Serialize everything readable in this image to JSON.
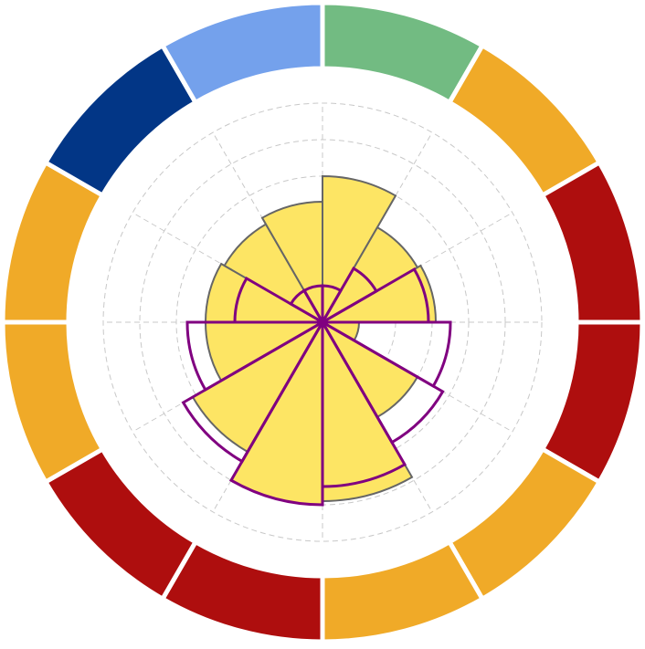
{
  "chart_data": {
    "type": "polar-bar",
    "title": "",
    "sectors": 12,
    "rlim": [
      0,
      6
    ],
    "grid": true,
    "ring_colors": [
      "#72bb82",
      "#f0aa28",
      "#ae0e0e",
      "#ae0e0e",
      "#f0aa28",
      "#f0aa28",
      "#ae0e0e",
      "#ae0e0e",
      "#f0aa28",
      "#f0aa28",
      "#023686",
      "#74a1ec"
    ],
    "series": [
      {
        "style": "filled",
        "color": "#fde564",
        "edge_color": "#666666",
        "values": [
          4.0,
          3.0,
          3.1,
          1.0,
          3.0,
          4.9,
          5.0,
          4.1,
          3.2,
          3.2,
          3.1,
          3.3
        ]
      },
      {
        "style": "outline",
        "color": "#800080",
        "values": [
          1.0,
          1.7,
          2.9,
          3.5,
          3.8,
          4.5,
          5.0,
          4.4,
          3.7,
          2.4,
          1.0,
          1.0
        ]
      }
    ]
  }
}
